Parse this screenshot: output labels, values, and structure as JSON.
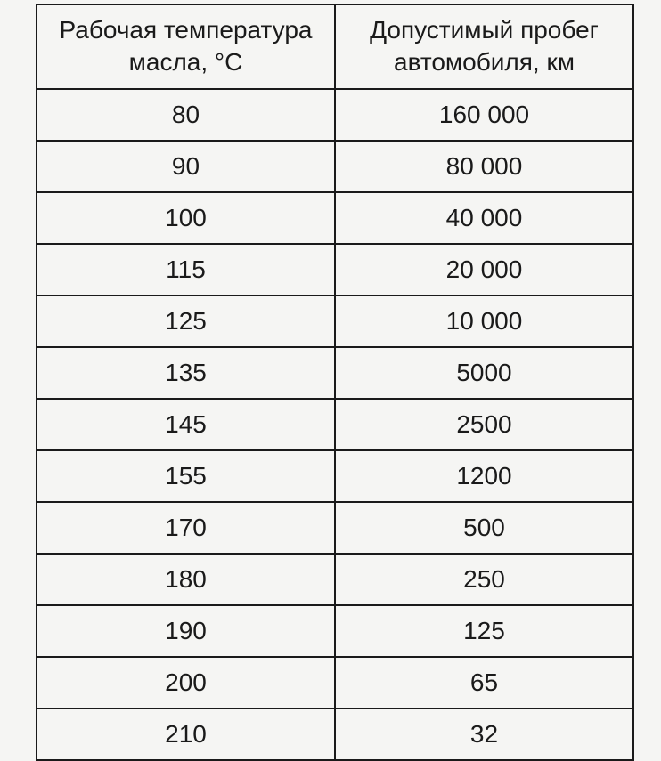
{
  "table": {
    "type": "table",
    "background_color": "#f5f5f3",
    "border_color": "#1a1a1a",
    "border_width": 2,
    "text_color": "#1a1a1a",
    "cell_fontsize": 28,
    "header_fontsize": 28,
    "font_family": "Arial, Helvetica, sans-serif",
    "columns": [
      {
        "header": "Рабочая температура\nмасла, °C",
        "width_pct": 50,
        "align": "center"
      },
      {
        "header": "Допустимый пробег\nавтомобиля, км",
        "width_pct": 50,
        "align": "center"
      }
    ],
    "rows": [
      [
        "80",
        "160 000"
      ],
      [
        "90",
        "80 000"
      ],
      [
        "100",
        "40 000"
      ],
      [
        "115",
        "20 000"
      ],
      [
        "125",
        "10 000"
      ],
      [
        "135",
        "5000"
      ],
      [
        "145",
        "2500"
      ],
      [
        "155",
        "1200"
      ],
      [
        "170",
        "500"
      ],
      [
        "180",
        "250"
      ],
      [
        "190",
        "125"
      ],
      [
        "200",
        "65"
      ],
      [
        "210",
        "32"
      ]
    ]
  }
}
